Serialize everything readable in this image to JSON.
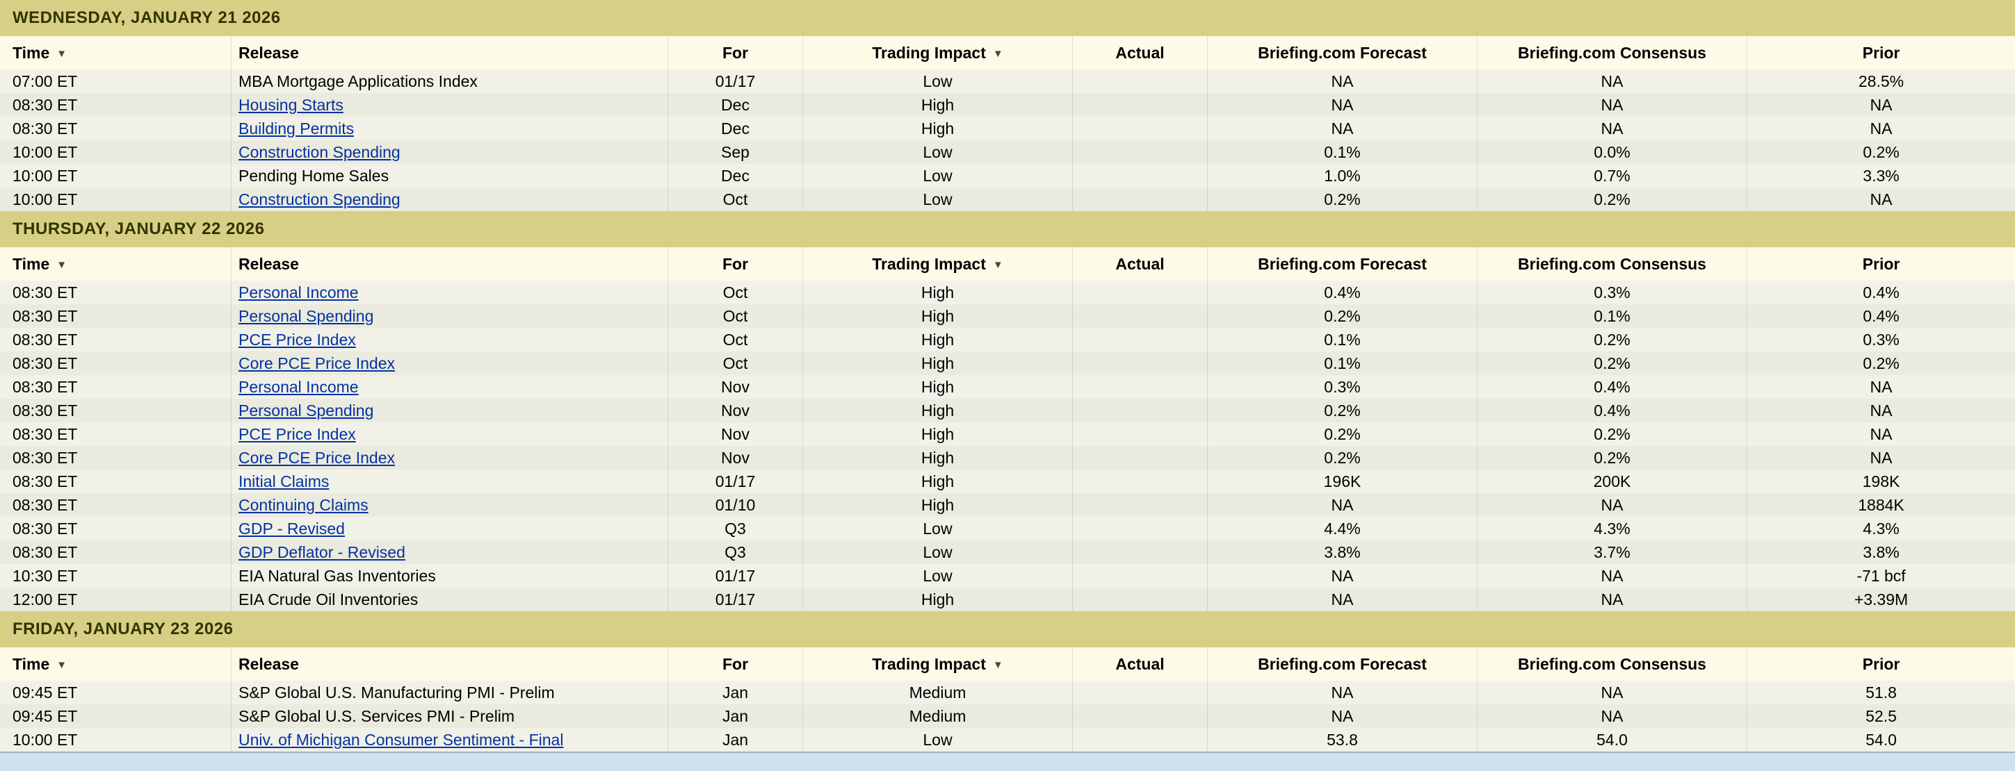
{
  "page": {
    "background_color": "#cfe0ee",
    "table_bottom_border_color": "#a4afb6"
  },
  "colors": {
    "day_header_bg": "#d7cf85",
    "day_header_text": "#333300",
    "column_header_bg": "#fdfbe7",
    "row_base_bg": "#f2f1e8",
    "row_alt_bg": "#ebeade",
    "link_color": "#0033a0",
    "text_color": "#000000"
  },
  "table": {
    "columns": [
      {
        "label": "Time",
        "sortable": true,
        "align": "left"
      },
      {
        "label": "Release",
        "sortable": false,
        "align": "left"
      },
      {
        "label": "For",
        "sortable": false,
        "align": "center"
      },
      {
        "label": "Trading Impact",
        "sortable": true,
        "align": "center"
      },
      {
        "label": "Actual",
        "sortable": false,
        "align": "center"
      },
      {
        "label": "Briefing.com Forecast",
        "sortable": false,
        "align": "center"
      },
      {
        "label": "Briefing.com Consensus",
        "sortable": false,
        "align": "center"
      },
      {
        "label": "Prior",
        "sortable": false,
        "align": "center"
      }
    ],
    "sort_icon_glyph": "▼",
    "sections": [
      {
        "date": "WEDNESDAY, JANUARY 21 2026",
        "rows": [
          {
            "time": "07:00 ET",
            "release": "MBA Mortgage Applications Index",
            "link": false,
            "for": "01/17",
            "impact": "Low",
            "actual": "",
            "forecast": "NA",
            "consensus": "NA",
            "prior": "28.5%"
          },
          {
            "time": "08:30 ET",
            "release": "Housing Starts",
            "link": true,
            "for": "Dec",
            "impact": "High",
            "actual": "",
            "forecast": "NA",
            "consensus": "NA",
            "prior": "NA"
          },
          {
            "time": "08:30 ET",
            "release": "Building Permits",
            "link": true,
            "for": "Dec",
            "impact": "High",
            "actual": "",
            "forecast": "NA",
            "consensus": "NA",
            "prior": "NA"
          },
          {
            "time": "10:00 ET",
            "release": "Construction Spending",
            "link": true,
            "for": "Sep",
            "impact": "Low",
            "actual": "",
            "forecast": "0.1%",
            "consensus": "0.0%",
            "prior": "0.2%"
          },
          {
            "time": "10:00 ET",
            "release": "Pending Home Sales",
            "link": false,
            "for": "Dec",
            "impact": "Low",
            "actual": "",
            "forecast": "1.0%",
            "consensus": "0.7%",
            "prior": "3.3%"
          },
          {
            "time": "10:00 ET",
            "release": "Construction Spending",
            "link": true,
            "for": "Oct",
            "impact": "Low",
            "actual": "",
            "forecast": "0.2%",
            "consensus": "0.2%",
            "prior": "NA"
          }
        ]
      },
      {
        "date": "THURSDAY, JANUARY 22 2026",
        "rows": [
          {
            "time": "08:30 ET",
            "release": "Personal Income",
            "link": true,
            "for": "Oct",
            "impact": "High",
            "actual": "",
            "forecast": "0.4%",
            "consensus": "0.3%",
            "prior": "0.4%"
          },
          {
            "time": "08:30 ET",
            "release": "Personal Spending",
            "link": true,
            "for": "Oct",
            "impact": "High",
            "actual": "",
            "forecast": "0.2%",
            "consensus": "0.1%",
            "prior": "0.4%"
          },
          {
            "time": "08:30 ET",
            "release": "PCE Price Index",
            "link": true,
            "for": "Oct",
            "impact": "High",
            "actual": "",
            "forecast": "0.1%",
            "consensus": "0.2%",
            "prior": "0.3%"
          },
          {
            "time": "08:30 ET",
            "release": "Core PCE Price Index",
            "link": true,
            "for": "Oct",
            "impact": "High",
            "actual": "",
            "forecast": "0.1%",
            "consensus": "0.2%",
            "prior": "0.2%"
          },
          {
            "time": "08:30 ET",
            "release": "Personal Income",
            "link": true,
            "for": "Nov",
            "impact": "High",
            "actual": "",
            "forecast": "0.3%",
            "consensus": "0.4%",
            "prior": "NA"
          },
          {
            "time": "08:30 ET",
            "release": "Personal Spending",
            "link": true,
            "for": "Nov",
            "impact": "High",
            "actual": "",
            "forecast": "0.2%",
            "consensus": "0.4%",
            "prior": "NA"
          },
          {
            "time": "08:30 ET",
            "release": "PCE Price Index",
            "link": true,
            "for": "Nov",
            "impact": "High",
            "actual": "",
            "forecast": "0.2%",
            "consensus": "0.2%",
            "prior": "NA"
          },
          {
            "time": "08:30 ET",
            "release": "Core PCE Price Index",
            "link": true,
            "for": "Nov",
            "impact": "High",
            "actual": "",
            "forecast": "0.2%",
            "consensus": "0.2%",
            "prior": "NA"
          },
          {
            "time": "08:30 ET",
            "release": "Initial Claims",
            "link": true,
            "for": "01/17",
            "impact": "High",
            "actual": "",
            "forecast": "196K",
            "consensus": "200K",
            "prior": "198K"
          },
          {
            "time": "08:30 ET",
            "release": "Continuing Claims",
            "link": true,
            "for": "01/10",
            "impact": "High",
            "actual": "",
            "forecast": "NA",
            "consensus": "NA",
            "prior": "1884K"
          },
          {
            "time": "08:30 ET",
            "release": "GDP - Revised",
            "link": true,
            "for": "Q3",
            "impact": "Low",
            "actual": "",
            "forecast": "4.4%",
            "consensus": "4.3%",
            "prior": "4.3%"
          },
          {
            "time": "08:30 ET",
            "release": "GDP Deflator - Revised",
            "link": true,
            "for": "Q3",
            "impact": "Low",
            "actual": "",
            "forecast": "3.8%",
            "consensus": "3.7%",
            "prior": "3.8%"
          },
          {
            "time": "10:30 ET",
            "release": "EIA Natural Gas Inventories",
            "link": false,
            "for": "01/17",
            "impact": "Low",
            "actual": "",
            "forecast": "NA",
            "consensus": "NA",
            "prior": "-71 bcf"
          },
          {
            "time": "12:00 ET",
            "release": "EIA Crude Oil Inventories",
            "link": false,
            "for": "01/17",
            "impact": "High",
            "actual": "",
            "forecast": "NA",
            "consensus": "NA",
            "prior": "+3.39M"
          }
        ]
      },
      {
        "date": "FRIDAY, JANUARY 23 2026",
        "rows": [
          {
            "time": "09:45 ET",
            "release": "S&P Global U.S. Manufacturing PMI - Prelim",
            "link": false,
            "for": "Jan",
            "impact": "Medium",
            "actual": "",
            "forecast": "NA",
            "consensus": "NA",
            "prior": "51.8"
          },
          {
            "time": "09:45 ET",
            "release": "S&P Global U.S. Services PMI - Prelim",
            "link": false,
            "for": "Jan",
            "impact": "Medium",
            "actual": "",
            "forecast": "NA",
            "consensus": "NA",
            "prior": "52.5"
          },
          {
            "time": "10:00 ET",
            "release": "Univ. of Michigan Consumer Sentiment - Final",
            "link": true,
            "for": "Jan",
            "impact": "Low",
            "actual": "",
            "forecast": "53.8",
            "consensus": "54.0",
            "prior": "54.0"
          }
        ]
      }
    ]
  }
}
